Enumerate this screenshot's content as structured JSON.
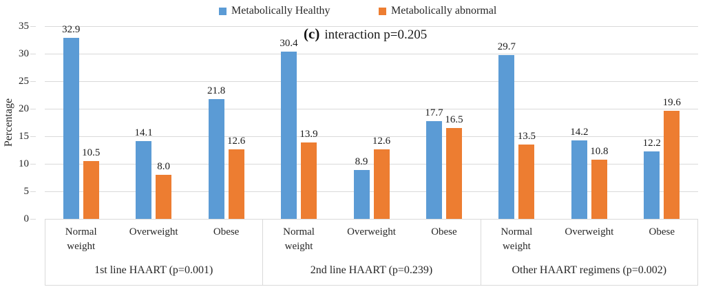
{
  "title": {
    "prefix": "(c)",
    "text": "interaction p=0.205"
  },
  "legend": [
    {
      "label": "Metabolically Healthy",
      "color": "#5B9BD5"
    },
    {
      "label": "Metabolically abnormal",
      "color": "#ED7D31"
    }
  ],
  "y_axis": {
    "label": "Percentage"
  },
  "colors": {
    "blue": "#5B9BD5",
    "orange": "#ED7D31",
    "grid": "#D9D9D9",
    "text": "#262626"
  },
  "chart_data": {
    "type": "bar",
    "title": "(c) interaction p=0.205",
    "xlabel": "",
    "ylabel": "Percentage",
    "ylim": [
      0,
      35
    ],
    "yticks": [
      0,
      5,
      10,
      15,
      20,
      25,
      30,
      35
    ],
    "grid": true,
    "legend_position": "top",
    "series_names": [
      "Metabolically Healthy",
      "Metabolically abnormal"
    ],
    "series_colors": [
      "#5B9BD5",
      "#ED7D31"
    ],
    "groups": [
      {
        "label": "1st line HAART (p=0.001)",
        "categories": [
          "Normal\nweight",
          "Overweight",
          "Obese"
        ],
        "series": [
          {
            "name": "Metabolically Healthy",
            "values": [
              32.9,
              14.1,
              21.8
            ]
          },
          {
            "name": "Metabolically abnormal",
            "values": [
              10.5,
              8.0,
              12.6
            ]
          }
        ]
      },
      {
        "label": "2nd line HAART (p=0.239)",
        "categories": [
          "Normal\nweight",
          "Overweight",
          "Obese"
        ],
        "series": [
          {
            "name": "Metabolically Healthy",
            "values": [
              30.4,
              8.9,
              17.7
            ]
          },
          {
            "name": "Metabolically abnormal",
            "values": [
              13.9,
              12.6,
              16.5
            ]
          }
        ]
      },
      {
        "label": "Other HAART regimens (p=0.002)",
        "categories": [
          "Normal\nweight",
          "Overweight",
          "Obese"
        ],
        "series": [
          {
            "name": "Metabolically Healthy",
            "values": [
              29.7,
              14.2,
              12.2
            ]
          },
          {
            "name": "Metabolically abnormal",
            "values": [
              13.5,
              10.8,
              19.6
            ]
          }
        ]
      }
    ]
  }
}
